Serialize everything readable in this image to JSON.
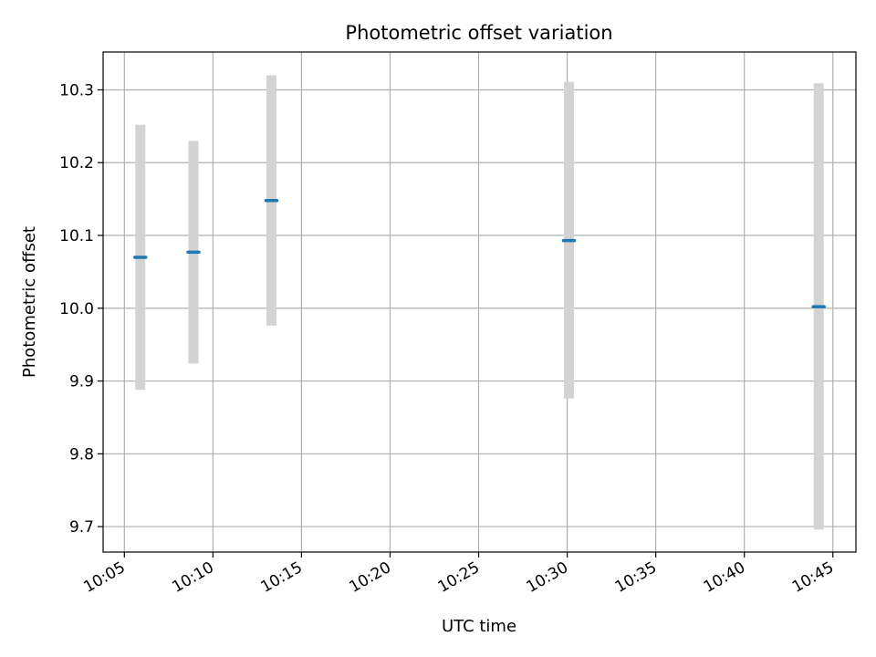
{
  "chart_data": {
    "type": "scatter",
    "title": "Photometric offset variation",
    "xlabel": "UTC time",
    "ylabel": "Photometric offset",
    "x_tick_labels": [
      "10:05",
      "10:10",
      "10:15",
      "10:20",
      "10:25",
      "10:30",
      "10:35",
      "10:40",
      "10:45"
    ],
    "x_ticks_minutes": [
      5,
      10,
      15,
      20,
      25,
      30,
      35,
      40,
      45
    ],
    "xlim_minutes": [
      3.8,
      46.3
    ],
    "y_ticks": [
      9.7,
      9.8,
      9.9,
      10.0,
      10.1,
      10.2,
      10.3
    ],
    "y_tick_labels": [
      "9.7",
      "9.8",
      "9.9",
      "10.0",
      "10.1",
      "10.2",
      "10.3"
    ],
    "ylim": [
      9.665,
      10.352
    ],
    "grid": true,
    "colors": {
      "point": "#1f77b4",
      "error_bar": "#d3d3d3",
      "grid": "#b0b0b0",
      "axes": "#000000"
    },
    "points": [
      {
        "time": "10:05:54",
        "t_min": 5.9,
        "value": 10.07,
        "err_low": 9.888,
        "err_high": 10.252
      },
      {
        "time": "10:08:54",
        "t_min": 8.9,
        "value": 10.077,
        "err_low": 9.924,
        "err_high": 10.23
      },
      {
        "time": "10:13:18",
        "t_min": 13.3,
        "value": 10.148,
        "err_low": 9.976,
        "err_high": 10.32
      },
      {
        "time": "10:30:06",
        "t_min": 30.1,
        "value": 10.093,
        "err_low": 9.876,
        "err_high": 10.311
      },
      {
        "time": "10:44:12",
        "t_min": 44.2,
        "value": 10.002,
        "err_low": 9.696,
        "err_high": 10.309
      }
    ]
  }
}
